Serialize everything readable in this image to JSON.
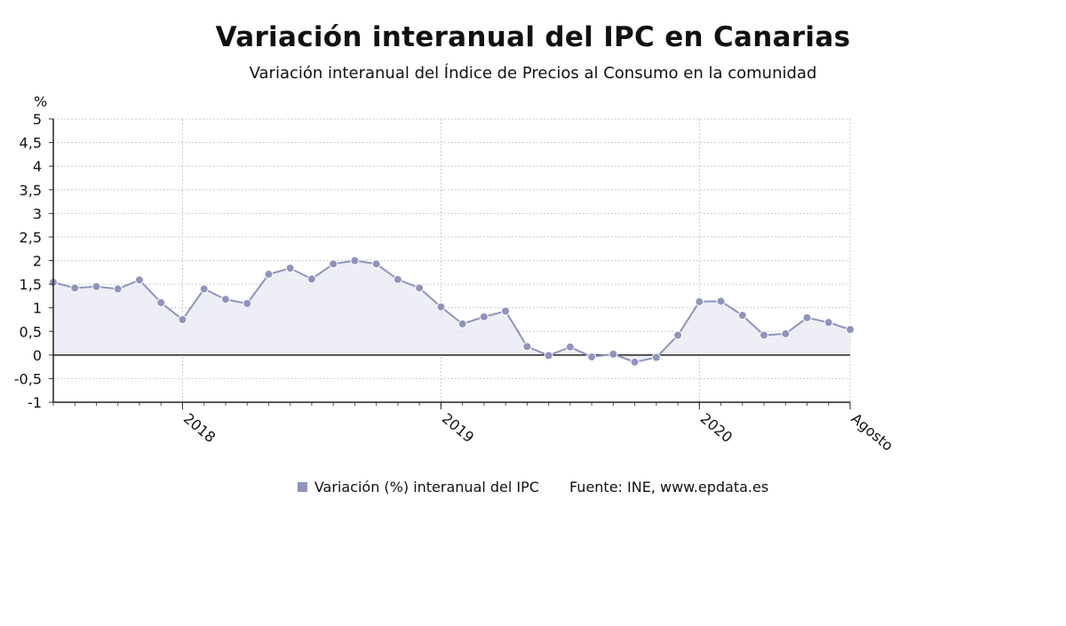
{
  "chart": {
    "title": "Variación interanual del IPC en Canarias",
    "subtitle": "Variación interanual del Índice de Precios al Consumo en la comunidad",
    "source": "Fuente: INE, www.epdata.es"
  },
  "chart_data": {
    "type": "area",
    "title": "Variación interanual del IPC en Canarias",
    "subtitle": "Variación interanual del Índice de Precios al Consumo en la comunidad",
    "ylabel": "%",
    "ylim": [
      -1,
      5
    ],
    "yticks": [
      5,
      4.5,
      4,
      3.5,
      3,
      2.5,
      2,
      1.5,
      1,
      0.5,
      0,
      -0.5,
      -1
    ],
    "ytick_labels": [
      "5",
      "4,5",
      "4",
      "3,5",
      "3",
      "2,5",
      "2",
      "1,5",
      "1",
      "0,5",
      "0",
      "-0,5",
      "-1"
    ],
    "x_labels": [
      {
        "label": "2018",
        "index": 6
      },
      {
        "label": "2019",
        "index": 18
      },
      {
        "label": "2020",
        "index": 30
      },
      {
        "label": "Agosto",
        "index": 37
      }
    ],
    "grid": true,
    "legend_position": "bottom",
    "series": [
      {
        "name": "Variación (%) interanual del IPC",
        "color": "#8f94bd",
        "x": [
          "2017-07",
          "2017-08",
          "2017-09",
          "2017-10",
          "2017-11",
          "2017-12",
          "2018-01",
          "2018-02",
          "2018-03",
          "2018-04",
          "2018-05",
          "2018-06",
          "2018-07",
          "2018-08",
          "2018-09",
          "2018-10",
          "2018-11",
          "2018-12",
          "2019-01",
          "2019-02",
          "2019-03",
          "2019-04",
          "2019-05",
          "2019-06",
          "2019-07",
          "2019-08",
          "2019-09",
          "2019-10",
          "2019-11",
          "2019-12",
          "2020-01",
          "2020-02",
          "2020-03",
          "2020-04",
          "2020-05",
          "2020-06",
          "2020-07",
          "2020-08"
        ],
        "values": [
          1.54,
          1.42,
          1.45,
          1.4,
          1.59,
          1.11,
          0.75,
          1.4,
          1.18,
          1.09,
          1.71,
          1.84,
          1.61,
          1.93,
          2.0,
          1.93,
          1.6,
          1.42,
          1.02,
          0.66,
          0.81,
          0.93,
          0.18,
          -0.01,
          0.17,
          -0.04,
          0.02,
          -0.15,
          -0.05,
          0.42,
          1.13,
          1.14,
          0.84,
          0.42,
          0.45,
          0.79,
          0.69,
          0.54
        ]
      }
    ]
  }
}
